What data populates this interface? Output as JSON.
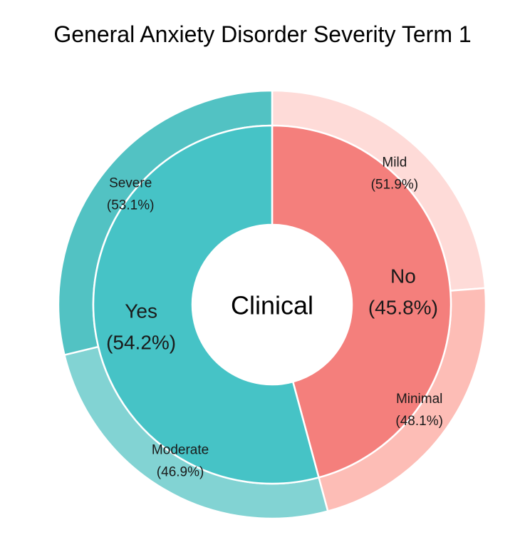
{
  "chart_data": {
    "type": "pie",
    "title": "General Anxiety Disorder Severity Term 1",
    "center_label": "Clinical",
    "inner": [
      {
        "name": "No",
        "percent_text": "(45.8%)",
        "value": 45.8,
        "color": "#F47F7C"
      },
      {
        "name": "Yes",
        "percent_text": "(54.2%)",
        "value": 54.2,
        "color": "#46C3C6"
      }
    ],
    "outer": [
      {
        "name": "Mild",
        "percent_text": "(51.9%)",
        "value": 51.9,
        "parent": "No",
        "color": "#FEDBD8"
      },
      {
        "name": "Minimal",
        "percent_text": "(48.1%)",
        "value": 48.1,
        "parent": "No",
        "color": "#FDBDB6"
      },
      {
        "name": "Moderate",
        "percent_text": "(46.9%)",
        "value": 46.9,
        "parent": "Yes",
        "color": "#82D3D3"
      },
      {
        "name": "Severe",
        "percent_text": "(53.1%)",
        "value": 53.1,
        "parent": "Yes",
        "color": "#52C2C3"
      }
    ]
  }
}
